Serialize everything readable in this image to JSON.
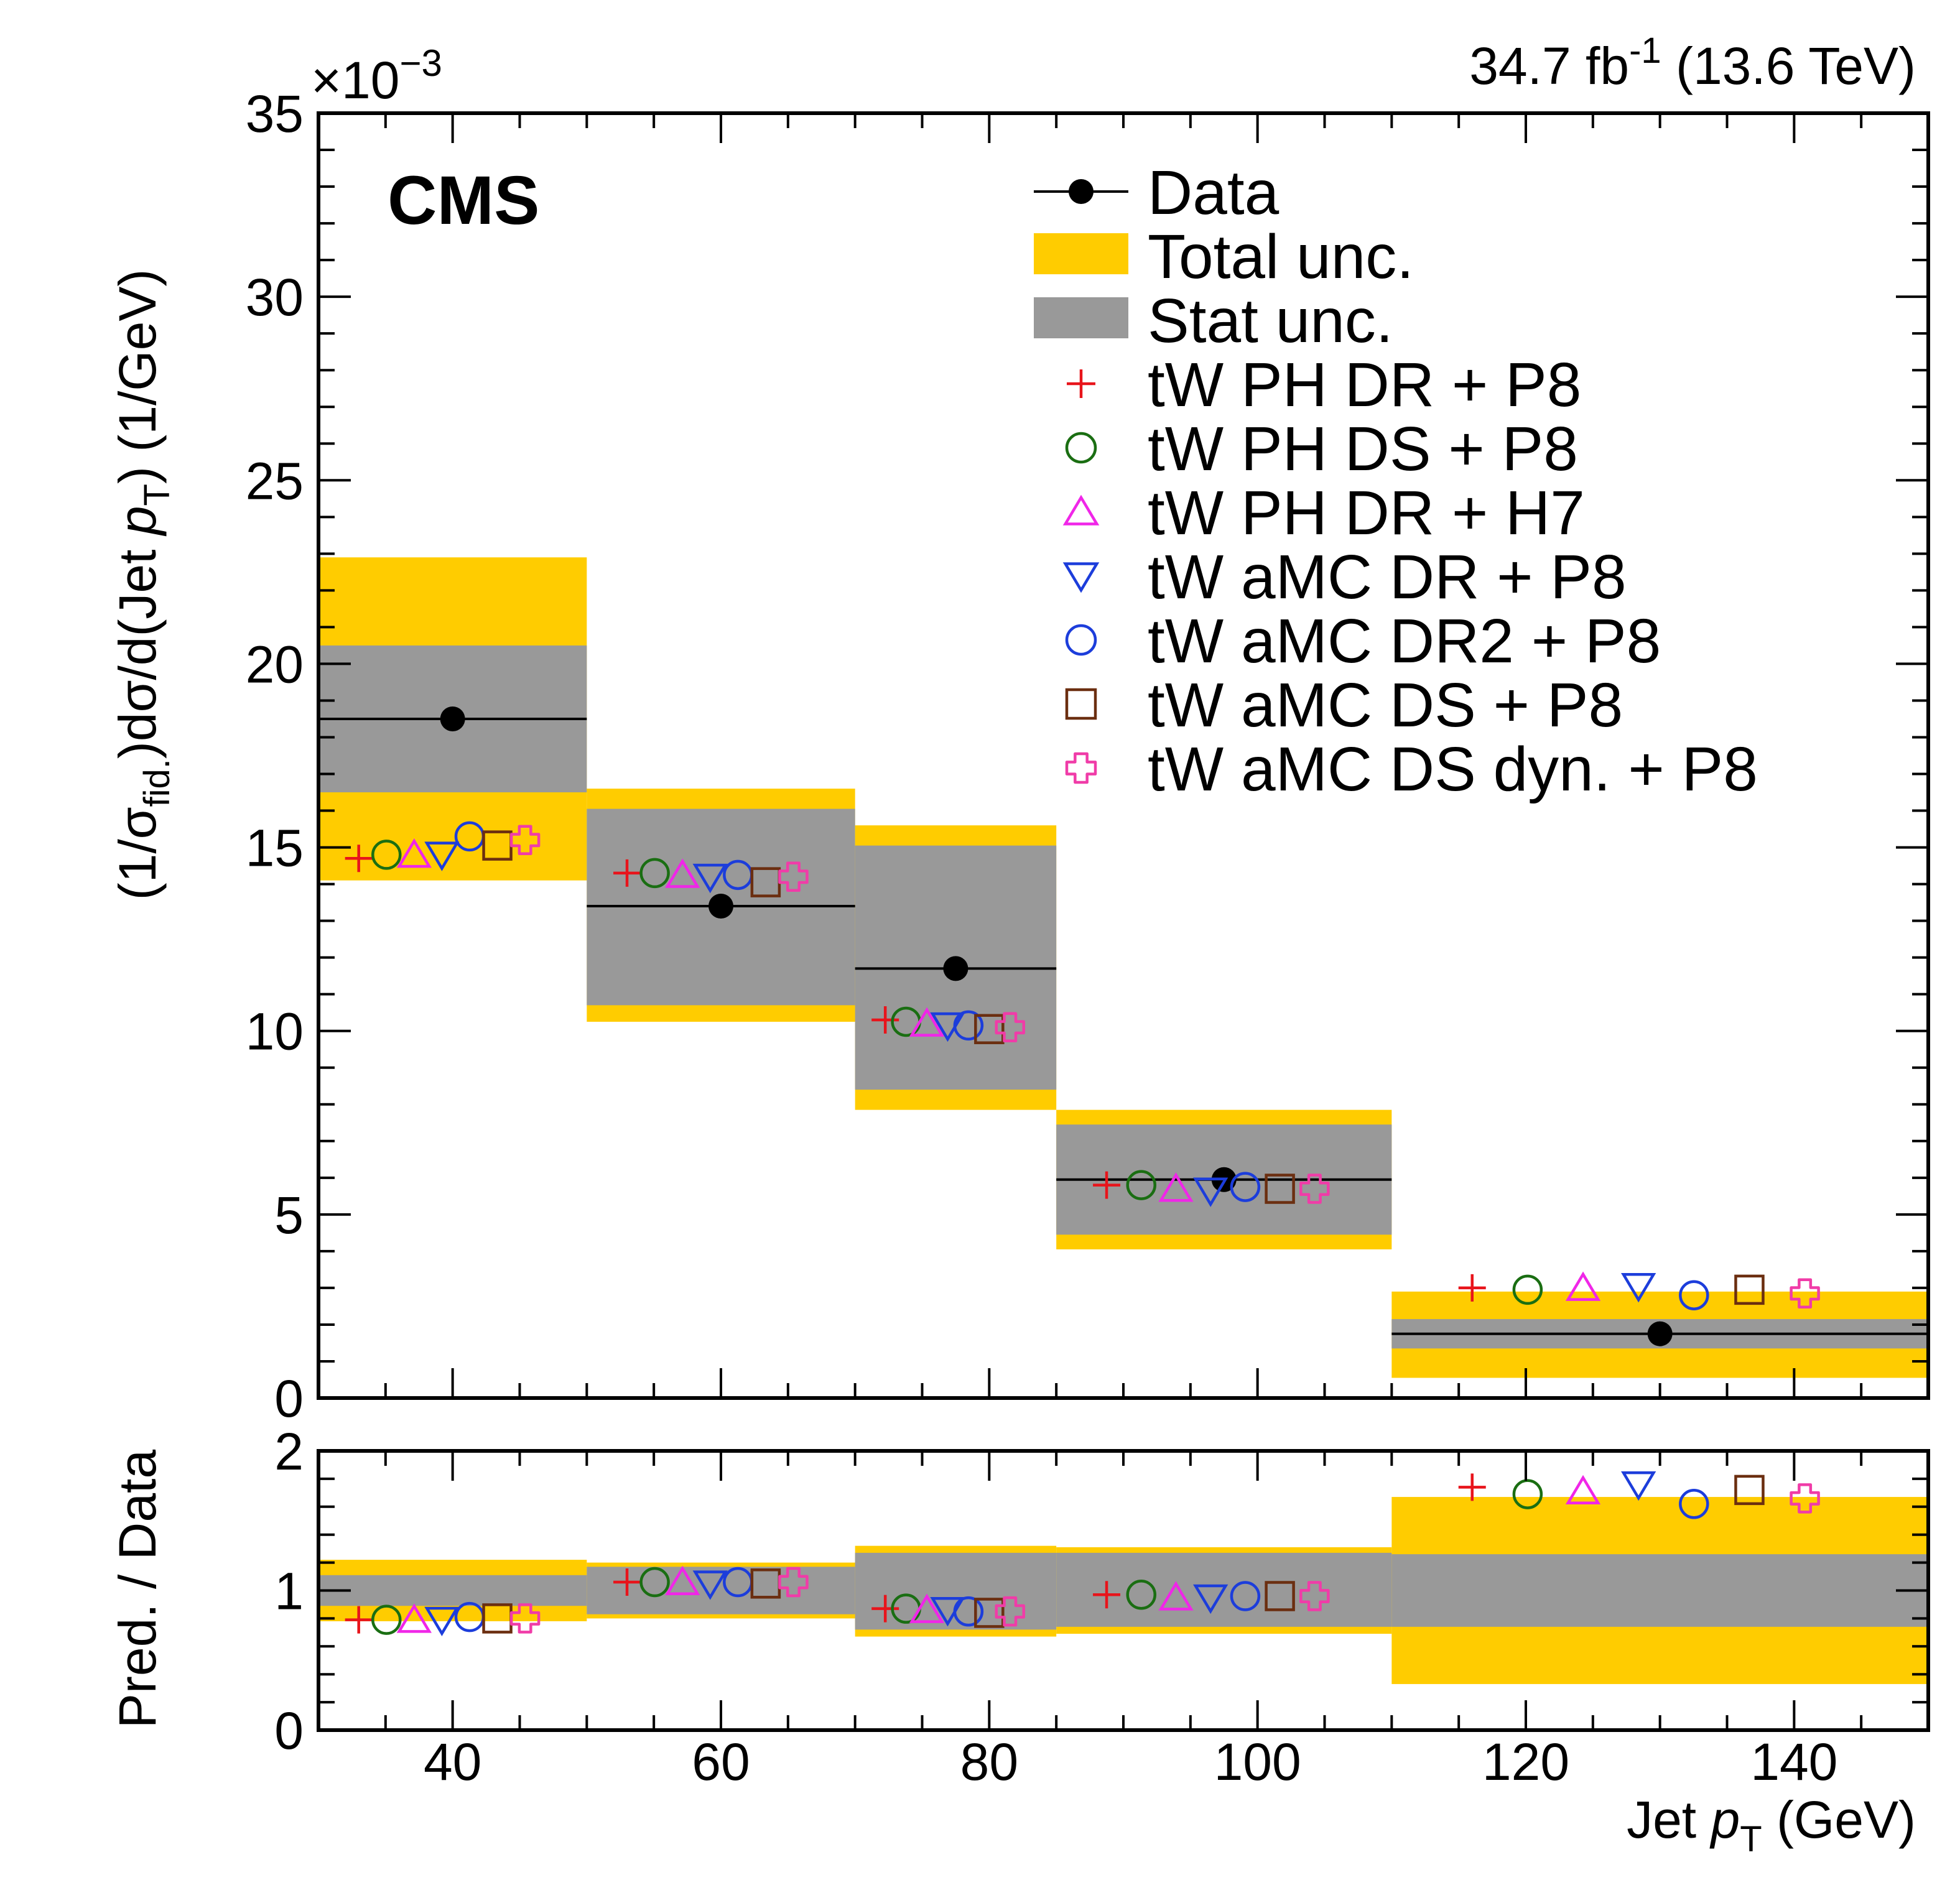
{
  "chart_data": {
    "type": "scatter",
    "experiment_label": "CMS",
    "lumi_label": {
      "main": "34.7 fb",
      "sup": "-1",
      "rest": " (13.6 TeV)"
    },
    "top": {
      "exponent_label": {
        "main": "×10",
        "sup": "−3"
      },
      "ylabel": {
        "a": "(1/σ",
        "b": "fid.",
        "c": ")dσ/d(Jet  ",
        "d": "p",
        "e": "T",
        "f": ") (1/GeV)"
      },
      "ylim": [
        0,
        35
      ],
      "yticks": [
        0,
        5,
        10,
        15,
        20,
        25,
        30,
        35
      ],
      "ytick_labels": [
        "0",
        "5",
        "10",
        "15",
        "20",
        "25",
        "30",
        "35"
      ]
    },
    "ratio": {
      "ylabel": "Pred. / Data",
      "ylim": [
        0,
        2
      ],
      "yticks": [
        0,
        1,
        2
      ],
      "ytick_labels": [
        "0",
        "1",
        "2"
      ]
    },
    "xlabel": {
      "a": "Jet ",
      "b": "p",
      "c": "T",
      "d": " (GeV)"
    },
    "xlim": [
      30,
      150
    ],
    "xticks": [
      40,
      60,
      80,
      100,
      120,
      140
    ],
    "xtick_labels": [
      "40",
      "60",
      "80",
      "100",
      "120",
      "140"
    ],
    "bins": [
      [
        30,
        50
      ],
      [
        50,
        70
      ],
      [
        70,
        85
      ],
      [
        85,
        110
      ],
      [
        110,
        150
      ]
    ],
    "data": {
      "name": "Data",
      "x": [
        40,
        60,
        77.5,
        97.5,
        130
      ],
      "y": [
        18.5,
        13.4,
        11.7,
        5.95,
        1.75
      ]
    },
    "total_unc": {
      "name": "Total unc.",
      "low": [
        14.1,
        10.25,
        7.85,
        4.05,
        0.55
      ],
      "high": [
        22.9,
        16.6,
        15.6,
        7.85,
        2.9
      ],
      "ratio_low": [
        0.78,
        0.8,
        0.67,
        0.69,
        0.33
      ],
      "ratio_high": [
        1.22,
        1.2,
        1.32,
        1.31,
        1.67
      ]
    },
    "stat_unc": {
      "name": "Stat unc.",
      "low": [
        16.5,
        10.7,
        8.4,
        4.45,
        1.35
      ],
      "high": [
        20.5,
        16.05,
        15.05,
        7.45,
        2.15
      ],
      "ratio_low": [
        0.89,
        0.83,
        0.72,
        0.74,
        0.74
      ],
      "ratio_high": [
        1.11,
        1.17,
        1.27,
        1.27,
        1.26
      ]
    },
    "series": [
      {
        "name": "tW PH DR + P8",
        "marker": "plus",
        "color": "#e8141b",
        "y": [
          14.7,
          14.3,
          10.3,
          5.8,
          3.0
        ],
        "ratio": [
          0.79,
          1.06,
          0.87,
          0.97,
          1.74
        ]
      },
      {
        "name": "tW PH DS + P8",
        "marker": "circle",
        "color": "#1a6e12",
        "y": [
          14.8,
          14.3,
          10.25,
          5.8,
          2.95
        ],
        "ratio": [
          0.79,
          1.06,
          0.87,
          0.97,
          1.69
        ]
      },
      {
        "name": "tW PH DR + H7",
        "marker": "triangle-up",
        "color": "#f026e8",
        "y": [
          14.8,
          14.25,
          10.2,
          5.7,
          3.0
        ],
        "ratio": [
          0.79,
          1.06,
          0.86,
          0.95,
          1.71
        ]
      },
      {
        "name": "tW aMC DR + P8",
        "marker": "triangle-down",
        "color": "#1c3ddb",
        "y": [
          14.8,
          14.2,
          10.15,
          5.65,
          3.05
        ],
        "ratio": [
          0.79,
          1.05,
          0.86,
          0.95,
          1.76
        ]
      },
      {
        "name": "tW aMC DR2 + P8",
        "marker": "circle",
        "color": "#1c3ddb",
        "y": [
          15.3,
          14.25,
          10.15,
          5.75,
          2.8
        ],
        "ratio": [
          0.81,
          1.06,
          0.85,
          0.96,
          1.62
        ]
      },
      {
        "name": "tW aMC DS + P8",
        "marker": "square",
        "color": "#6b2e10",
        "y": [
          15.05,
          14.05,
          10.05,
          5.7,
          2.95
        ],
        "ratio": [
          0.8,
          1.05,
          0.84,
          0.96,
          1.72
        ]
      },
      {
        "name": "tW aMC DS dyn. + P8",
        "marker": "cross",
        "color": "#f03ca8",
        "y": [
          15.2,
          14.2,
          10.1,
          5.7,
          2.85
        ],
        "ratio": [
          0.8,
          1.06,
          0.85,
          0.96,
          1.66
        ]
      }
    ],
    "colors": {
      "total_unc": "#ffcc00",
      "stat_unc": "#999999",
      "data": "#000000"
    }
  }
}
